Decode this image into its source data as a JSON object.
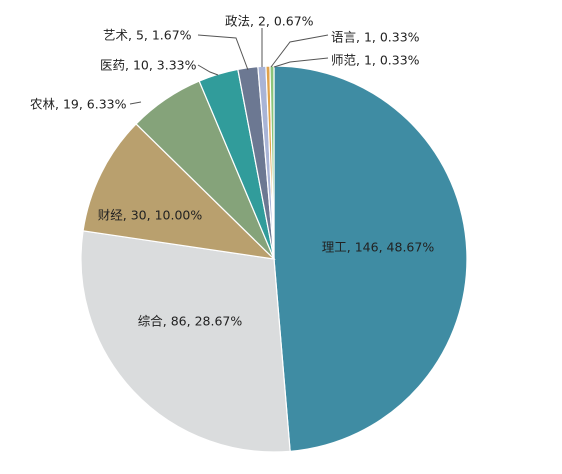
{
  "chart_data": {
    "type": "pie",
    "start_angle_deg": 0,
    "direction": "clockwise",
    "slices": [
      {
        "label": "理工",
        "value": 146,
        "percent": "48.67%",
        "color": "#3f8ca3",
        "label_text": "理工, 146, 48.67%"
      },
      {
        "label": "综合",
        "value": 86,
        "percent": "28.67%",
        "color": "#dadcdd",
        "label_text": "综合, 86, 28.67%"
      },
      {
        "label": "财经",
        "value": 30,
        "percent": "10.00%",
        "color": "#b9a06e",
        "label_text": "财经, 30, 10.00%"
      },
      {
        "label": "农林",
        "value": 19,
        "percent": "6.33%",
        "color": "#85a37a",
        "label_text": "农林, 19, 6.33%"
      },
      {
        "label": "医药",
        "value": 10,
        "percent": "3.33%",
        "color": "#319c9b",
        "label_text": "医药, 10, 3.33%"
      },
      {
        "label": "艺术",
        "value": 5,
        "percent": "1.67%",
        "color": "#6c7892",
        "label_text": "艺术, 5, 1.67%"
      },
      {
        "label": "政法",
        "value": 2,
        "percent": "0.67%",
        "color": "#a9b4d6",
        "label_text": "政法, 2, 0.67%"
      },
      {
        "label": "语言",
        "value": 1,
        "percent": "0.33%",
        "color": "#e0a24b",
        "label_text": "语言, 1, 0.33%"
      },
      {
        "label": "师范",
        "value": 1,
        "percent": "0.33%",
        "color": "#8cc47a",
        "label_text": "师范, 1, 0.33%"
      }
    ]
  }
}
